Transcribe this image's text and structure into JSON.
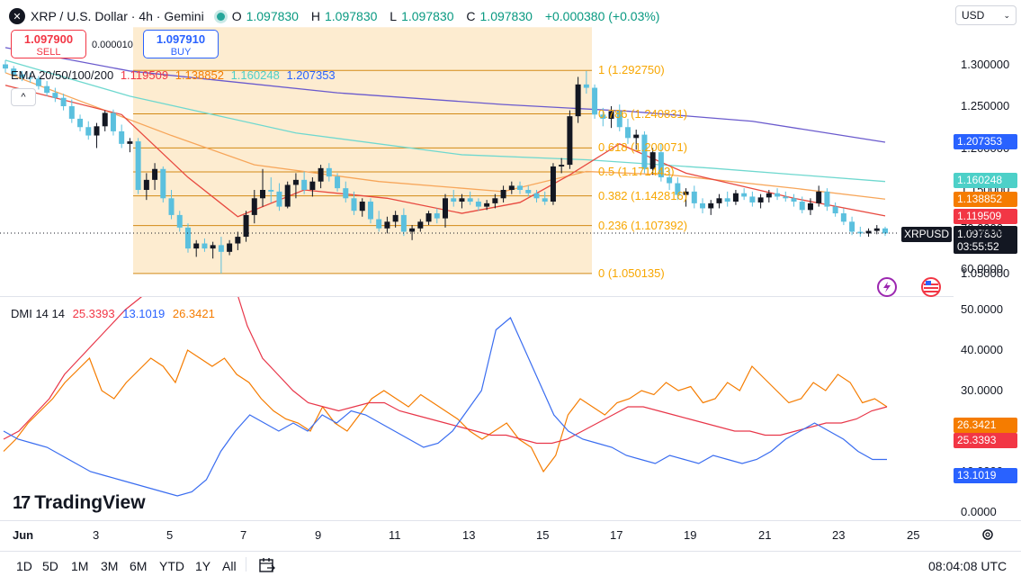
{
  "header": {
    "symbol_icon": "x-icon",
    "title": "XRP / U.S. Dollar · 4h · Gemini",
    "ohlc": [
      {
        "k": "O",
        "v": "1.097830"
      },
      {
        "k": "H",
        "v": "1.097830"
      },
      {
        "k": "L",
        "v": "1.097830"
      },
      {
        "k": "C",
        "v": "1.097830"
      }
    ],
    "change": "+0.000380 (+0.03%)"
  },
  "trade": {
    "sell_price": "1.097900",
    "sell_label": "SELL",
    "spread": "0.000010",
    "buy_price": "1.097910",
    "buy_label": "BUY"
  },
  "ema_legend": {
    "label": "EMA 20/50/100/200",
    "values": [
      "1.119509",
      "1.138852",
      "1.160248",
      "1.207353"
    ],
    "colors": [
      "#f23645",
      "#f7a600",
      "#4dd0c8",
      "#5b5bd6"
    ]
  },
  "collapse_glyph": "^",
  "currency": "USD",
  "y_axis": {
    "labels": [
      "1.300000",
      "1.250000",
      "1.200000",
      "1.150000",
      "1.100000",
      "1.050000"
    ],
    "tags": [
      {
        "value": "1.207353",
        "color": "#2962ff"
      },
      {
        "value": "1.160248",
        "color": "#4dd0c8"
      },
      {
        "value": "1.138852",
        "color": "#f57c00"
      },
      {
        "value": "1.119509",
        "color": "#f23645"
      }
    ],
    "symbol_tag": "XRPUSD",
    "last_price": "1.097830",
    "countdown": "03:55:52"
  },
  "fib": {
    "levels": [
      {
        "label": "1 (1.292750)",
        "price": 1.29275
      },
      {
        "label": "0.786 (1.240831)",
        "price": 1.240831
      },
      {
        "label": "0.618 (1.200071)",
        "price": 1.200071
      },
      {
        "label": "0.5 (1.171443)",
        "price": 1.171443
      },
      {
        "label": "0.382 (1.142816)",
        "price": 1.142816
      },
      {
        "label": "0.236 (1.107392)",
        "price": 1.107392
      },
      {
        "label": "0 (1.050135)",
        "price": 1.050135
      }
    ],
    "color": "#f7a600"
  },
  "dmi_legend": {
    "label": "DMI 14 14",
    "values": [
      "25.3393",
      "13.1019",
      "26.3421"
    ],
    "colors": [
      "#f23645",
      "#2962ff",
      "#f57c00"
    ]
  },
  "dmi_axis": {
    "labels": [
      "70.0000",
      "60.0000",
      "50.0000",
      "40.0000",
      "30.0000",
      "20.0000",
      "10.0000",
      "0.0000"
    ],
    "tags": [
      {
        "value": "26.3421",
        "color": "#f57c00"
      },
      {
        "value": "25.3393",
        "color": "#f23645"
      },
      {
        "value": "13.1019",
        "color": "#2962ff"
      }
    ]
  },
  "x_axis": {
    "labels": [
      "Jun",
      "3",
      "5",
      "7",
      "9",
      "11",
      "13",
      "15",
      "17",
      "19",
      "21",
      "23",
      "25"
    ]
  },
  "timeframes": [
    "1D",
    "5D",
    "1M",
    "3M",
    "6M",
    "YTD",
    "1Y",
    "All"
  ],
  "clock": "08:04:08 UTC",
  "brand": "TradingView",
  "chart_data": {
    "type": "candlestick",
    "candles_ohlc": [
      [
        1.3,
        1.305,
        1.29,
        1.295
      ],
      [
        1.295,
        1.298,
        1.285,
        1.288
      ],
      [
        1.288,
        1.292,
        1.28,
        1.284
      ],
      [
        1.284,
        1.29,
        1.278,
        1.283
      ],
      [
        1.283,
        1.286,
        1.27,
        1.274
      ],
      [
        1.274,
        1.28,
        1.262,
        1.266
      ],
      [
        1.266,
        1.272,
        1.255,
        1.26
      ],
      [
        1.26,
        1.265,
        1.245,
        1.25
      ],
      [
        1.25,
        1.258,
        1.23,
        1.235
      ],
      [
        1.235,
        1.24,
        1.22,
        1.225
      ],
      [
        1.225,
        1.232,
        1.21,
        1.215
      ],
      [
        1.215,
        1.23,
        1.2,
        1.226
      ],
      [
        1.226,
        1.245,
        1.22,
        1.242
      ],
      [
        1.242,
        1.246,
        1.215,
        1.22
      ],
      [
        1.22,
        1.228,
        1.2,
        1.205
      ],
      [
        1.205,
        1.212,
        1.195,
        1.208
      ],
      [
        1.208,
        1.212,
        1.145,
        1.15
      ],
      [
        1.15,
        1.17,
        1.138,
        1.162
      ],
      [
        1.162,
        1.182,
        1.15,
        1.175
      ],
      [
        1.175,
        1.178,
        1.135,
        1.14
      ],
      [
        1.14,
        1.15,
        1.115,
        1.12
      ],
      [
        1.12,
        1.125,
        1.1,
        1.105
      ],
      [
        1.105,
        1.11,
        1.075,
        1.08
      ],
      [
        1.08,
        1.09,
        1.07,
        1.086
      ],
      [
        1.086,
        1.092,
        1.076,
        1.08
      ],
      [
        1.08,
        1.088,
        1.068,
        1.084
      ],
      [
        1.084,
        1.094,
        1.05,
        1.076
      ],
      [
        1.076,
        1.09,
        1.072,
        1.086
      ],
      [
        1.086,
        1.1,
        1.078,
        1.094
      ],
      [
        1.094,
        1.125,
        1.088,
        1.12
      ],
      [
        1.12,
        1.15,
        1.11,
        1.14
      ],
      [
        1.14,
        1.175,
        1.13,
        1.15
      ],
      [
        1.15,
        1.165,
        1.135,
        1.148
      ],
      [
        1.148,
        1.158,
        1.125,
        1.13
      ],
      [
        1.13,
        1.16,
        1.128,
        1.156
      ],
      [
        1.156,
        1.17,
        1.14,
        1.162
      ],
      [
        1.162,
        1.172,
        1.145,
        1.15
      ],
      [
        1.15,
        1.165,
        1.142,
        1.16
      ],
      [
        1.16,
        1.18,
        1.152,
        1.176
      ],
      [
        1.176,
        1.182,
        1.16,
        1.166
      ],
      [
        1.166,
        1.17,
        1.148,
        1.152
      ],
      [
        1.152,
        1.16,
        1.135,
        1.14
      ],
      [
        1.14,
        1.148,
        1.12,
        1.125
      ],
      [
        1.125,
        1.14,
        1.118,
        1.136
      ],
      [
        1.136,
        1.14,
        1.11,
        1.115
      ],
      [
        1.115,
        1.125,
        1.1,
        1.104
      ],
      [
        1.104,
        1.118,
        1.098,
        1.112
      ],
      [
        1.112,
        1.125,
        1.105,
        1.12
      ],
      [
        1.12,
        1.128,
        1.095,
        1.1
      ],
      [
        1.1,
        1.108,
        1.09,
        1.104
      ],
      [
        1.104,
        1.115,
        1.1,
        1.112
      ],
      [
        1.112,
        1.125,
        1.108,
        1.122
      ],
      [
        1.122,
        1.128,
        1.11,
        1.116
      ],
      [
        1.116,
        1.145,
        1.105,
        1.14
      ],
      [
        1.14,
        1.15,
        1.13,
        1.136
      ],
      [
        1.136,
        1.145,
        1.128,
        1.14
      ],
      [
        1.14,
        1.148,
        1.132,
        1.136
      ],
      [
        1.136,
        1.14,
        1.125,
        1.13
      ],
      [
        1.13,
        1.138,
        1.126,
        1.134
      ],
      [
        1.134,
        1.145,
        1.128,
        1.14
      ],
      [
        1.14,
        1.155,
        1.135,
        1.15
      ],
      [
        1.15,
        1.16,
        1.145,
        1.155
      ],
      [
        1.155,
        1.16,
        1.145,
        1.15
      ],
      [
        1.15,
        1.155,
        1.142,
        1.146
      ],
      [
        1.146,
        1.15,
        1.135,
        1.14
      ],
      [
        1.14,
        1.148,
        1.132,
        1.136
      ],
      [
        1.136,
        1.182,
        1.132,
        1.178
      ],
      [
        1.178,
        1.188,
        1.17,
        1.18
      ],
      [
        1.18,
        1.245,
        1.175,
        1.238
      ],
      [
        1.238,
        1.285,
        1.23,
        1.276
      ],
      [
        1.276,
        1.292,
        1.265,
        1.272
      ],
      [
        1.272,
        1.276,
        1.235,
        1.24
      ],
      [
        1.24,
        1.248,
        1.226,
        1.235
      ],
      [
        1.235,
        1.25,
        1.224,
        1.244
      ],
      [
        1.244,
        1.252,
        1.22,
        1.225
      ],
      [
        1.225,
        1.235,
        1.205,
        1.212
      ],
      [
        1.212,
        1.222,
        1.198,
        1.216
      ],
      [
        1.216,
        1.22,
        1.17,
        1.175
      ],
      [
        1.175,
        1.2,
        1.168,
        1.195
      ],
      [
        1.195,
        1.205,
        1.16,
        1.165
      ],
      [
        1.165,
        1.175,
        1.15,
        1.158
      ],
      [
        1.158,
        1.165,
        1.138,
        1.144
      ],
      [
        1.144,
        1.152,
        1.13,
        1.148
      ],
      [
        1.148,
        1.155,
        1.128,
        1.134
      ],
      [
        1.134,
        1.14,
        1.122,
        1.128
      ],
      [
        1.128,
        1.138,
        1.12,
        1.134
      ],
      [
        1.134,
        1.145,
        1.128,
        1.14
      ],
      [
        1.14,
        1.148,
        1.13,
        1.136
      ],
      [
        1.136,
        1.15,
        1.132,
        1.146
      ],
      [
        1.146,
        1.152,
        1.138,
        1.142
      ],
      [
        1.142,
        1.148,
        1.13,
        1.135
      ],
      [
        1.135,
        1.145,
        1.128,
        1.141
      ],
      [
        1.141,
        1.15,
        1.135,
        1.146
      ],
      [
        1.146,
        1.152,
        1.138,
        1.142
      ],
      [
        1.142,
        1.148,
        1.136,
        1.14
      ],
      [
        1.14,
        1.145,
        1.13,
        1.136
      ],
      [
        1.136,
        1.142,
        1.122,
        1.126
      ],
      [
        1.126,
        1.14,
        1.12,
        1.134
      ],
      [
        1.134,
        1.155,
        1.13,
        1.148
      ],
      [
        1.148,
        1.152,
        1.125,
        1.13
      ],
      [
        1.13,
        1.135,
        1.118,
        1.122
      ],
      [
        1.122,
        1.128,
        1.108,
        1.112
      ],
      [
        1.112,
        1.118,
        1.096,
        1.1
      ],
      [
        1.1,
        1.106,
        1.094,
        1.098
      ],
      [
        1.098,
        1.104,
        1.094,
        1.101
      ],
      [
        1.101,
        1.108,
        1.097,
        1.104
      ],
      [
        1.104,
        1.106,
        1.095,
        1.098
      ]
    ],
    "ema200": [
      [
        0,
        1.32
      ],
      [
        15,
        1.292
      ],
      [
        40,
        1.266
      ],
      [
        60,
        1.252
      ],
      [
        75,
        1.244
      ],
      [
        90,
        1.232
      ],
      [
        106,
        1.207
      ]
    ],
    "ema100": [
      [
        0,
        1.305
      ],
      [
        15,
        1.262
      ],
      [
        35,
        1.218
      ],
      [
        55,
        1.192
      ],
      [
        70,
        1.186
      ],
      [
        85,
        1.176
      ],
      [
        106,
        1.16
      ]
    ],
    "ema50": [
      [
        0,
        1.29
      ],
      [
        20,
        1.215
      ],
      [
        30,
        1.18
      ],
      [
        45,
        1.16
      ],
      [
        60,
        1.148
      ],
      [
        70,
        1.172
      ],
      [
        80,
        1.168
      ],
      [
        95,
        1.152
      ],
      [
        106,
        1.139
      ]
    ],
    "ema20": [
      [
        0,
        1.275
      ],
      [
        14,
        1.24
      ],
      [
        22,
        1.165
      ],
      [
        28,
        1.118
      ],
      [
        36,
        1.15
      ],
      [
        46,
        1.14
      ],
      [
        55,
        1.122
      ],
      [
        62,
        1.135
      ],
      [
        68,
        1.168
      ],
      [
        74,
        1.205
      ],
      [
        82,
        1.17
      ],
      [
        95,
        1.14
      ],
      [
        106,
        1.119
      ]
    ],
    "dmi_plus_orange": [
      15,
      18,
      22,
      25,
      28,
      32,
      35,
      38,
      30,
      28,
      32,
      35,
      38,
      36,
      32,
      40,
      38,
      36,
      38,
      34,
      32,
      28,
      25,
      23,
      22,
      20,
      26,
      22,
      20,
      24,
      28,
      30,
      28,
      26,
      29,
      27,
      25,
      23,
      20,
      18,
      20,
      22,
      18,
      16,
      10,
      14,
      24,
      28,
      26,
      24,
      27,
      28,
      30,
      29,
      32,
      30,
      31,
      27,
      28,
      32,
      30,
      36,
      33,
      30,
      27,
      28,
      32,
      30,
      34,
      32,
      27,
      28,
      26
    ],
    "dmi_minus_red": [
      18,
      20,
      24,
      28,
      34,
      38,
      42,
      46,
      50,
      53,
      56,
      60,
      64,
      67,
      66,
      58,
      46,
      38,
      34,
      30,
      27,
      26,
      25,
      26,
      27,
      27,
      25,
      24,
      23,
      22,
      21,
      20,
      19,
      19,
      18,
      17,
      17,
      18,
      20,
      22,
      24,
      26,
      26,
      25,
      24,
      23,
      22,
      21,
      20,
      20,
      19,
      19,
      20,
      21,
      22,
      22,
      23,
      25,
      26
    ],
    "dmi_adx_blue": [
      20,
      18,
      17,
      16,
      14,
      12,
      10,
      9,
      8,
      7,
      6,
      5,
      4,
      5,
      8,
      15,
      20,
      24,
      22,
      20,
      22,
      20,
      24,
      22,
      25,
      24,
      22,
      20,
      18,
      16,
      17,
      20,
      25,
      30,
      45,
      48,
      40,
      32,
      24,
      20,
      18,
      17,
      16,
      14,
      13,
      12,
      14,
      13,
      12,
      14,
      13,
      12,
      13,
      15,
      18,
      20,
      22,
      20,
      18,
      15,
      13,
      13
    ]
  }
}
